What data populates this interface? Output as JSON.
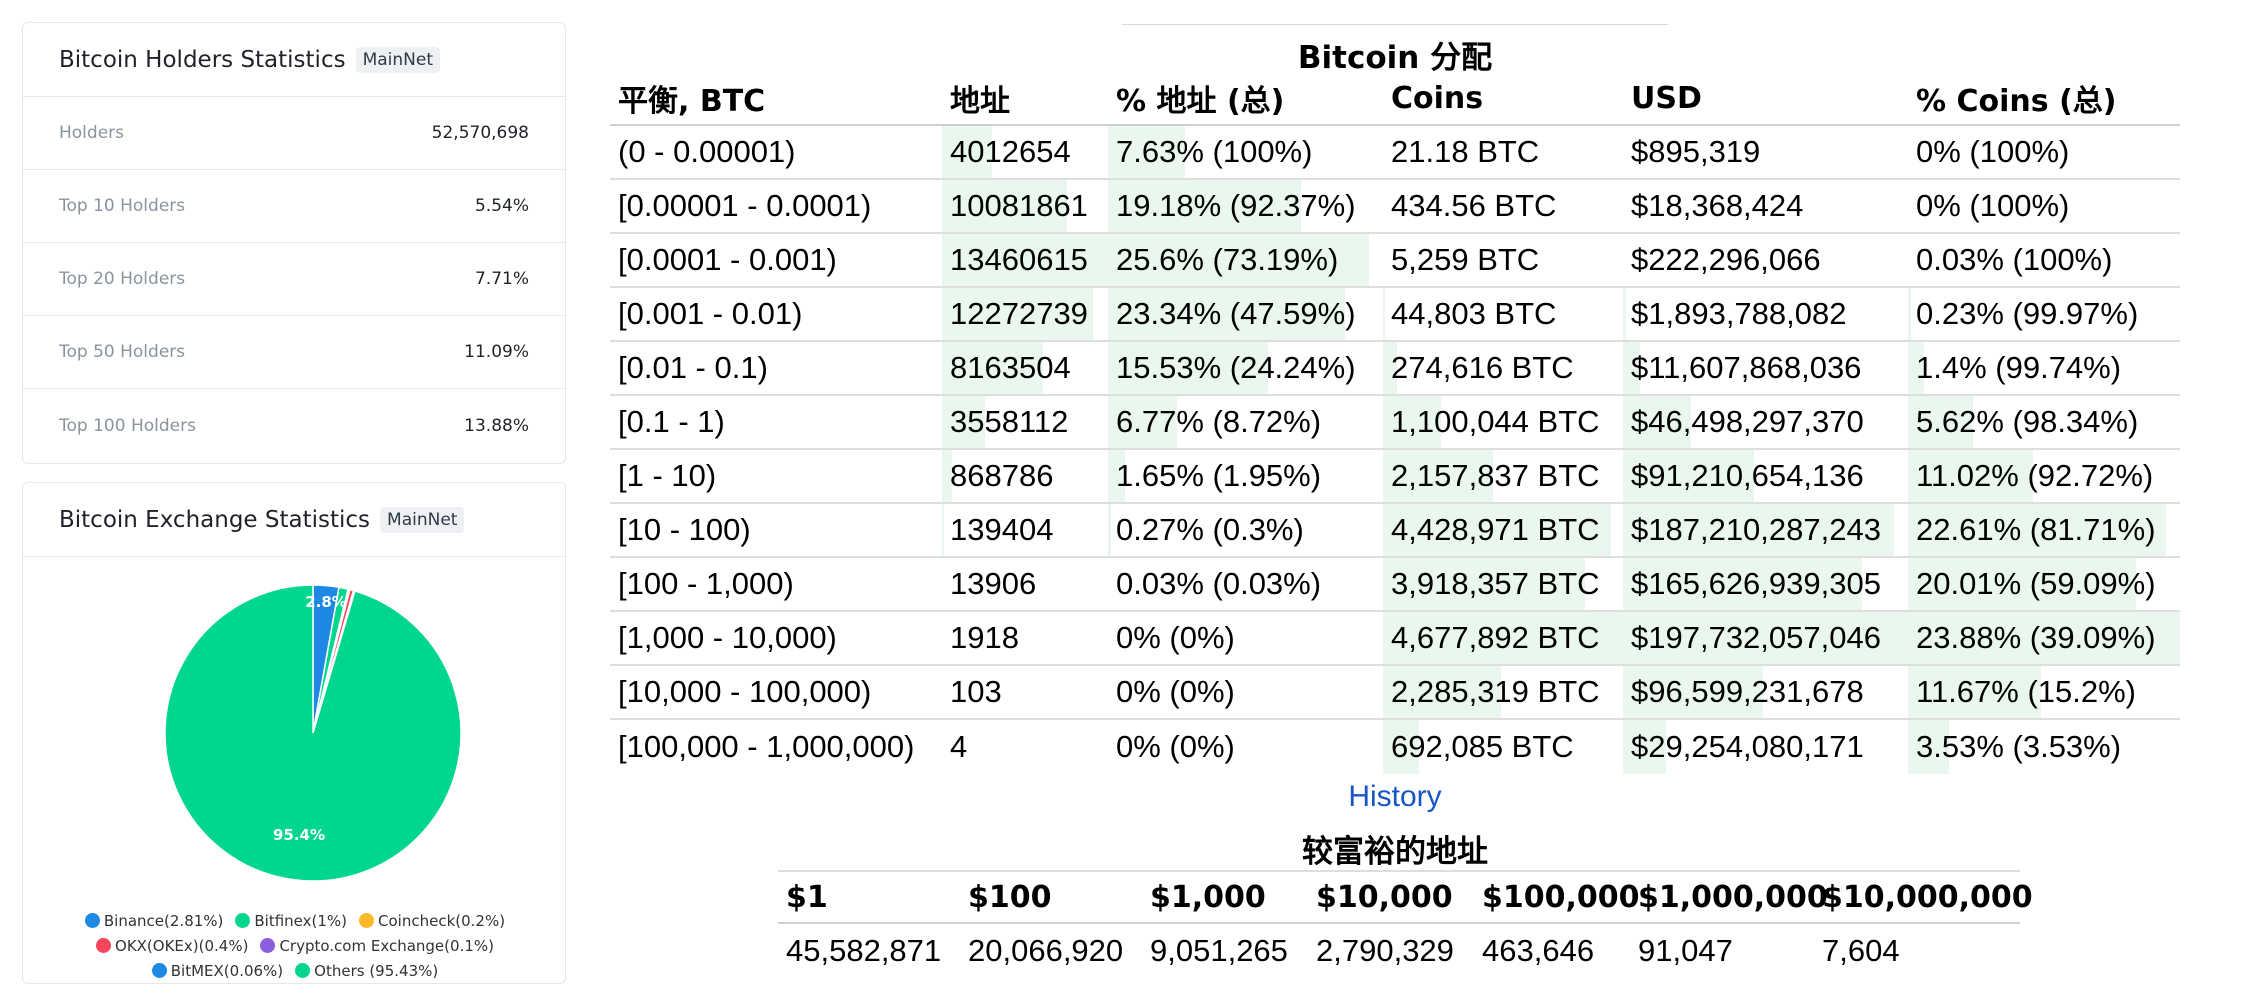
{
  "holders_card": {
    "title": "Bitcoin Holders Statistics",
    "badge": "MainNet",
    "rows": [
      {
        "label": "Holders",
        "value": "52,570,698"
      },
      {
        "label": "Top 10 Holders",
        "value": "5.54%"
      },
      {
        "label": "Top 20 Holders",
        "value": "7.71%"
      },
      {
        "label": "Top 50 Holders",
        "value": "11.09%"
      },
      {
        "label": "Top 100 Holders",
        "value": "13.88%"
      }
    ]
  },
  "exchange_card": {
    "title": "Bitcoin Exchange Statistics",
    "badge": "MainNet",
    "pie_labels": {
      "top": "2.8%",
      "bottom": "95.4%"
    },
    "legend": [
      {
        "label": "Binance(2.81%)",
        "color": "#1e88e5",
        "value": 2.81
      },
      {
        "label": "Bitfinex(1%)",
        "color": "#00d68f",
        "value": 1.0
      },
      {
        "label": "Coincheck(0.2%)",
        "color": "#fbb829",
        "value": 0.2
      },
      {
        "label": "OKX(OKEx)(0.4%)",
        "color": "#f4455b",
        "value": 0.4
      },
      {
        "label": "Crypto.com Exchange(0.1%)",
        "color": "#8a5ee0",
        "value": 0.1
      },
      {
        "label": "BitMEX(0.06%)",
        "color": "#1e88e5",
        "value": 0.06
      },
      {
        "label": "Others (95.43%)",
        "color": "#00d68f",
        "value": 95.43
      }
    ]
  },
  "distribution": {
    "title": "Bitcoin 分配",
    "headers": [
      "平衡, BTC",
      "地址",
      "% 地址 (总)",
      "Coins",
      "USD",
      "% Coins (总)"
    ],
    "rows": [
      {
        "range": "(0 - 0.00001)",
        "addresses": "4012654",
        "pct_addr": "7.63% (100%)",
        "coins": "21.18 BTC",
        "usd": "$895,319",
        "pct_coins": "0% (100%)",
        "bars": [
          0.3,
          0.28,
          0.0,
          0.0,
          0.0
        ]
      },
      {
        "range": "[0.00001 - 0.0001)",
        "addresses": "10081861",
        "pct_addr": "19.18% (92.37%)",
        "coins": "434.56 BTC",
        "usd": "$18,368,424",
        "pct_coins": "0% (100%)",
        "bars": [
          0.75,
          0.7,
          0.0,
          0.0,
          0.0
        ]
      },
      {
        "range": "[0.0001 - 0.001)",
        "addresses": "13460615",
        "pct_addr": "25.6% (73.19%)",
        "coins": "5,259 BTC",
        "usd": "$222,296,066",
        "pct_coins": "0.03% (100%)",
        "bars": [
          1.0,
          0.95,
          0.0,
          0.0,
          0.0
        ]
      },
      {
        "range": "[0.001 - 0.01)",
        "addresses": "12272739",
        "pct_addr": "23.34% (47.59%)",
        "coins": "44,803 BTC",
        "usd": "$1,893,788,082",
        "pct_coins": "0.23% (99.97%)",
        "bars": [
          0.91,
          0.86,
          0.01,
          0.01,
          0.01
        ]
      },
      {
        "range": "[0.01 - 0.1)",
        "addresses": "8163504",
        "pct_addr": "15.53% (24.24%)",
        "coins": "274,616 BTC",
        "usd": "$11,607,868,036",
        "pct_coins": "1.4% (99.74%)",
        "bars": [
          0.61,
          0.58,
          0.06,
          0.06,
          0.06
        ]
      },
      {
        "range": "[0.1 - 1)",
        "addresses": "3558112",
        "pct_addr": "6.77% (8.72%)",
        "coins": "1,100,044 BTC",
        "usd": "$46,498,297,370",
        "pct_coins": "5.62% (98.34%)",
        "bars": [
          0.26,
          0.25,
          0.24,
          0.24,
          0.24
        ]
      },
      {
        "range": "[1 - 10)",
        "addresses": "868786",
        "pct_addr": "1.65% (1.95%)",
        "coins": "2,157,837 BTC",
        "usd": "$91,210,654,136",
        "pct_coins": "11.02% (92.72%)",
        "bars": [
          0.06,
          0.06,
          0.46,
          0.46,
          0.46
        ]
      },
      {
        "range": "[10 - 100)",
        "addresses": "139404",
        "pct_addr": "0.27% (0.3%)",
        "coins": "4,428,971 BTC",
        "usd": "$187,210,287,243",
        "pct_coins": "22.61% (81.71%)",
        "bars": [
          0.01,
          0.01,
          0.95,
          0.95,
          0.95
        ]
      },
      {
        "range": "[100 - 1,000)",
        "addresses": "13906",
        "pct_addr": "0.03% (0.03%)",
        "coins": "3,918,357 BTC",
        "usd": "$165,626,939,305",
        "pct_coins": "20.01% (59.09%)",
        "bars": [
          0.0,
          0.0,
          0.84,
          0.84,
          0.84
        ]
      },
      {
        "range": "[1,000 - 10,000)",
        "addresses": "1918",
        "pct_addr": "0% (0%)",
        "coins": "4,677,892 BTC",
        "usd": "$197,732,057,046",
        "pct_coins": "23.88% (39.09%)",
        "bars": [
          0.0,
          0.0,
          1.0,
          1.0,
          1.0
        ]
      },
      {
        "range": "[10,000 - 100,000)",
        "addresses": "103",
        "pct_addr": "0% (0%)",
        "coins": "2,285,319 BTC",
        "usd": "$96,599,231,678",
        "pct_coins": "11.67% (15.2%)",
        "bars": [
          0.0,
          0.0,
          0.49,
          0.49,
          0.49
        ]
      },
      {
        "range": "[100,000 - 1,000,000)",
        "addresses": "4",
        "pct_addr": "0% (0%)",
        "coins": "692,085 BTC",
        "usd": "$29,254,080,171",
        "pct_coins": "3.53% (3.53%)",
        "bars": [
          0.0,
          0.0,
          0.15,
          0.15,
          0.15
        ]
      }
    ]
  },
  "history_link": "History",
  "richer": {
    "title": "较富裕的地址",
    "headers": [
      "$1",
      "$100",
      "$1,000",
      "$10,000",
      "$100,000",
      "$1,000,000",
      "$10,000,000"
    ],
    "values": [
      "45,582,871",
      "20,066,920",
      "9,051,265",
      "2,790,329",
      "463,646",
      "91,047",
      "7,604"
    ]
  }
}
